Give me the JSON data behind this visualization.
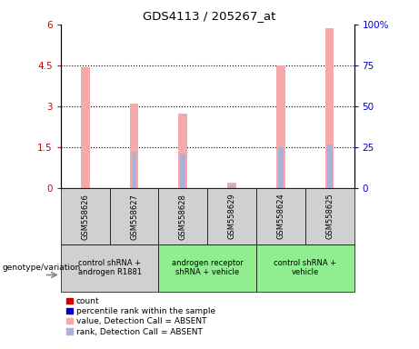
{
  "title": "GDS4113 / 205267_at",
  "samples": [
    "GSM558626",
    "GSM558627",
    "GSM558628",
    "GSM558629",
    "GSM558624",
    "GSM558625"
  ],
  "pink_bar_heights": [
    4.45,
    3.1,
    2.75,
    0.2,
    4.5,
    5.85
  ],
  "blue_bar_heights": [
    0.0,
    1.35,
    1.28,
    0.12,
    1.5,
    1.6
  ],
  "ylim_left": [
    0,
    6
  ],
  "ylim_right": [
    0,
    100
  ],
  "yticks_left": [
    0,
    1.5,
    3.0,
    4.5,
    6
  ],
  "ytick_labels_left": [
    "0",
    "1.5",
    "3",
    "4.5",
    "6"
  ],
  "yticks_right": [
    0,
    25,
    50,
    75,
    100
  ],
  "ytick_labels_right": [
    "0",
    "25",
    "50",
    "75",
    "100%"
  ],
  "pink_color": "#f4aaaa",
  "blue_color": "#aab0d8",
  "bar_width": 0.18,
  "left_tick_color": "#cc0000",
  "right_tick_color": "#0000cc",
  "group_configs": [
    {
      "indices": [
        0,
        1
      ],
      "color": "#d0d0d0",
      "label": "control shRNA +\nandrogen R1881"
    },
    {
      "indices": [
        2,
        3
      ],
      "color": "#90ee90",
      "label": "androgen receptor\nshRNA + vehicle"
    },
    {
      "indices": [
        4,
        5
      ],
      "color": "#90ee90",
      "label": "control shRNA +\nvehicle"
    }
  ],
  "sample_box_color": "#d0d0d0",
  "genotype_label": "genotype/variation",
  "legend_colors": [
    "#cc0000",
    "#0000cc",
    "#f4aaaa",
    "#aab0d8"
  ],
  "legend_labels": [
    "count",
    "percentile rank within the sample",
    "value, Detection Call = ABSENT",
    "rank, Detection Call = ABSENT"
  ]
}
